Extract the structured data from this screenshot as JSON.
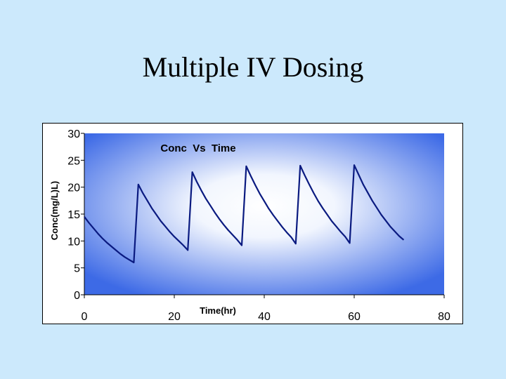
{
  "slide": {
    "title": "Multiple IV Dosing",
    "background": "#cce9fc"
  },
  "chart_data": {
    "type": "line",
    "title": "Conc  Vs  Time",
    "xlabel": "Time(hr)",
    "ylabel": "Conc(mg/L)L)",
    "xlim": [
      0,
      80
    ],
    "ylim": [
      0,
      30
    ],
    "xticks": [
      0,
      20,
      40,
      60,
      80
    ],
    "yticks": [
      0,
      5,
      10,
      15,
      20,
      25,
      30
    ],
    "grid": false,
    "line_color": "#0a1a80",
    "plot_bg_edge": "#3d6ae6",
    "plot_bg_center": "#ffffff",
    "series": [
      {
        "x": [
          0,
          1,
          2,
          3,
          4,
          5,
          6,
          7,
          8,
          9,
          10,
          11,
          12,
          13,
          14,
          15,
          16,
          17,
          18,
          19,
          20,
          21,
          22,
          23,
          24,
          25,
          26,
          27,
          28,
          29,
          30,
          31,
          32,
          33,
          34,
          35,
          36,
          37,
          38,
          39,
          40,
          41,
          42,
          43,
          44,
          45,
          46,
          47,
          48,
          49,
          50,
          51,
          52,
          53,
          54,
          55,
          56,
          57,
          58,
          59,
          60,
          61,
          62,
          63,
          64,
          65,
          66,
          67,
          68,
          69,
          70,
          71
        ],
        "y": [
          14.5,
          13.4,
          12.4,
          11.4,
          10.5,
          9.7,
          9.0,
          8.3,
          7.6,
          7.0,
          6.5,
          6.0,
          20.5,
          18.9,
          17.5,
          16.1,
          14.9,
          13.7,
          12.7,
          11.7,
          10.8,
          10.0,
          9.2,
          8.3,
          22.8,
          21.0,
          19.4,
          17.9,
          16.6,
          15.3,
          14.1,
          13.0,
          12.0,
          11.1,
          10.2,
          9.2,
          23.9,
          22.1,
          20.4,
          18.8,
          17.4,
          16.0,
          14.8,
          13.7,
          12.6,
          11.6,
          10.7,
          9.5,
          24.0,
          22.2,
          20.5,
          18.9,
          17.4,
          16.1,
          14.9,
          13.7,
          12.7,
          11.7,
          10.8,
          9.6,
          24.1,
          22.3,
          20.5,
          19.0,
          17.5,
          16.2,
          14.9,
          13.8,
          12.7,
          11.8,
          10.9,
          10.2
        ]
      }
    ]
  }
}
